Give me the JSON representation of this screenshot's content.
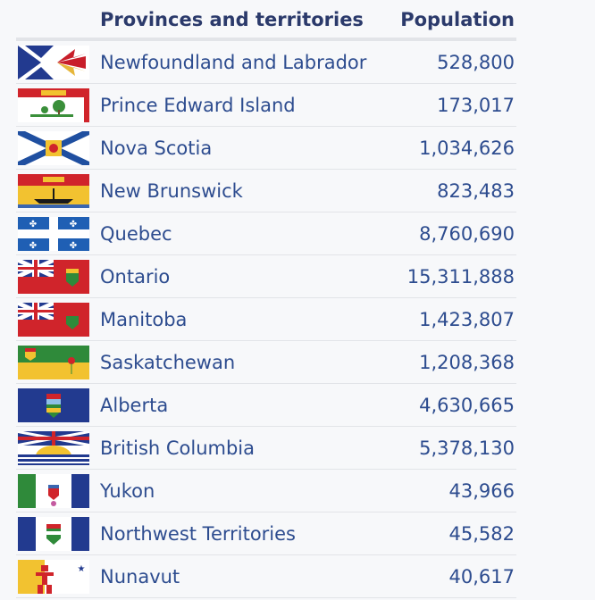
{
  "table": {
    "header_name": "Provinces and territories",
    "header_population": "Population"
  },
  "chart_data": {
    "type": "table",
    "title": "",
    "columns": [
      "Provinces and territories",
      "Population"
    ],
    "rows": [
      {
        "name": "Newfoundland and Labrador",
        "population": "528,800",
        "flag": "newfoundland-flag"
      },
      {
        "name": "Prince Edward Island",
        "population": "173,017",
        "flag": "prince-edward-island-flag"
      },
      {
        "name": "Nova Scotia",
        "population": "1,034,626",
        "flag": "nova-scotia-flag"
      },
      {
        "name": "New Brunswick",
        "population": "823,483",
        "flag": "new-brunswick-flag"
      },
      {
        "name": "Quebec",
        "population": "8,760,690",
        "flag": "quebec-flag"
      },
      {
        "name": "Ontario",
        "population": "15,311,888",
        "flag": "ontario-flag"
      },
      {
        "name": "Manitoba",
        "population": "1,423,807",
        "flag": "manitoba-flag"
      },
      {
        "name": "Saskatchewan",
        "population": "1,208,368",
        "flag": "saskatchewan-flag"
      },
      {
        "name": "Alberta",
        "population": "4,630,665",
        "flag": "alberta-flag"
      },
      {
        "name": "British Columbia",
        "population": "5,378,130",
        "flag": "british-columbia-flag"
      },
      {
        "name": "Yukon",
        "population": "43,966",
        "flag": "yukon-flag"
      },
      {
        "name": "Northwest Territories",
        "population": "45,582",
        "flag": "northwest-territories-flag"
      },
      {
        "name": "Nunavut",
        "population": "40,617",
        "flag": "nunavut-flag"
      }
    ]
  },
  "colors": {
    "header_text": "#2b3a6b",
    "row_text": "#2d4c8f",
    "divider": "#e2e4e8",
    "background": "#f7f8fa"
  }
}
